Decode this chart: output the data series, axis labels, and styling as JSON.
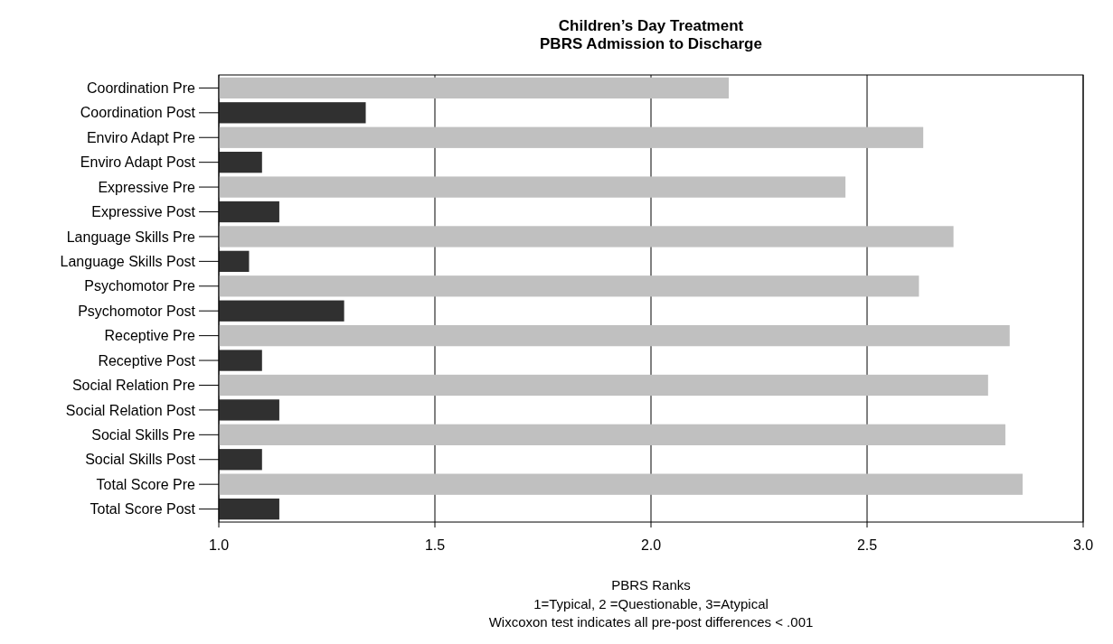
{
  "chart_data": {
    "type": "bar",
    "orientation": "horizontal",
    "title": "Children’s Day Treatment\nPBRS Admission to Discharge",
    "categories": [
      "Coordination Pre",
      "Coordination Post",
      "Enviro Adapt Pre",
      "Enviro Adapt Post",
      "Expressive Pre",
      "Expressive Post",
      "Language Skills Pre",
      "Language Skills Post",
      "Psychomotor Pre",
      "Psychomotor Post",
      "Receptive Pre",
      "Receptive Post",
      "Social Relation Pre",
      "Social Relation Post",
      "Social Skills Pre",
      "Social Skills Post",
      "Total Score Pre",
      "Total Score Post"
    ],
    "values": [
      2.18,
      1.34,
      2.63,
      1.1,
      2.45,
      1.14,
      2.7,
      1.07,
      2.62,
      1.29,
      2.83,
      1.1,
      2.78,
      1.14,
      2.82,
      1.1,
      2.86,
      1.14
    ],
    "colors": [
      "#c0c0c0",
      "#303030",
      "#c0c0c0",
      "#303030",
      "#c0c0c0",
      "#303030",
      "#c0c0c0",
      "#303030",
      "#c0c0c0",
      "#303030",
      "#c0c0c0",
      "#303030",
      "#c0c0c0",
      "#303030",
      "#c0c0c0",
      "#303030",
      "#c0c0c0",
      "#303030"
    ],
    "xlim": [
      1,
      3
    ],
    "xticks": [
      {
        "value": 1,
        "label": "1.0"
      },
      {
        "value": 1.5,
        "label": "1.5"
      },
      {
        "value": 2,
        "label": "2.0"
      },
      {
        "value": 2.5,
        "label": "2.5"
      },
      {
        "value": 3,
        "label": "3.0"
      }
    ],
    "grid": "x",
    "xlabel": "PBRS Ranks",
    "annotations": [
      "1=Typical, 2 =Questionable, 3=Atypical",
      "Wixcoxon test indicates all pre-post differences < .001"
    ]
  }
}
